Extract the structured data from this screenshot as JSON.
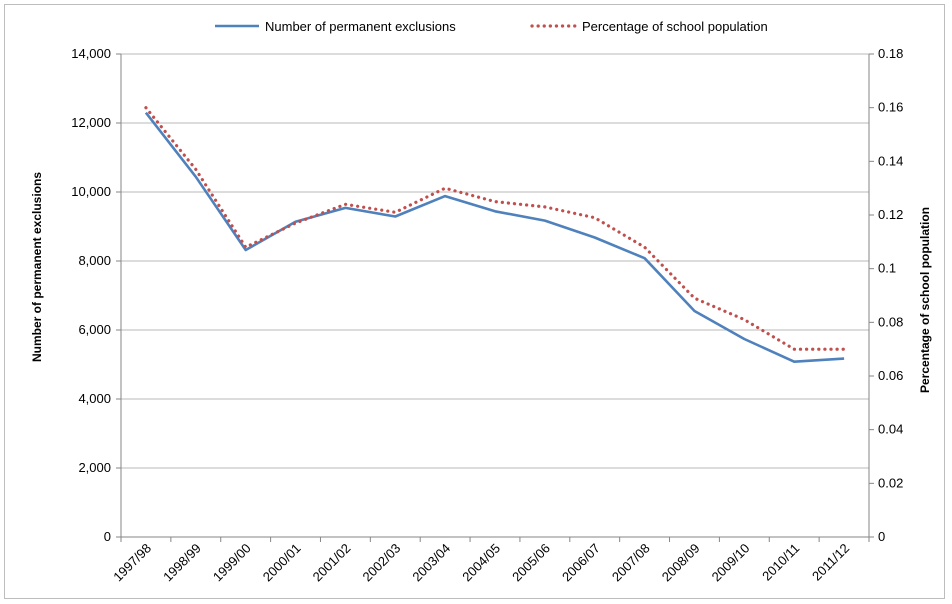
{
  "chart_data": {
    "type": "line",
    "categories": [
      "1997/98",
      "1998/99",
      "1999/00",
      "2000/01",
      "2001/02",
      "2002/03",
      "2003/04",
      "2004/05",
      "2005/06",
      "2006/07",
      "2007/08",
      "2008/09",
      "2009/10",
      "2010/11",
      "2011/12"
    ],
    "series": [
      {
        "name": "Number of permanent exclusions",
        "axis": "left",
        "style": "solid",
        "color": "#4f81bd",
        "values": [
          12300,
          10440,
          8320,
          9140,
          9540,
          9290,
          9880,
          9440,
          9170,
          8680,
          8080,
          6550,
          5740,
          5080,
          5170
        ]
      },
      {
        "name": "Percentage of school population",
        "axis": "right",
        "style": "dotted",
        "color": "#c0504d",
        "values": [
          0.16,
          0.137,
          0.108,
          0.117,
          0.124,
          0.121,
          0.13,
          0.125,
          0.123,
          0.119,
          0.108,
          0.089,
          0.081,
          0.07,
          0.07
        ]
      }
    ],
    "ylabel": "Number of permanent exclusions",
    "y2label": "Percentage of school population",
    "ylim": [
      0,
      14000
    ],
    "y2lim": [
      0,
      0.18
    ],
    "yticks": [
      "0",
      "2,000",
      "4,000",
      "6,000",
      "8,000",
      "10,000",
      "12,000",
      "14,000"
    ],
    "y2ticks": [
      "0",
      "0.02",
      "0.04",
      "0.06",
      "0.08",
      "0.1",
      "0.12",
      "0.14",
      "0.16",
      "0.18"
    ],
    "grid": true,
    "legend_position": "top"
  }
}
